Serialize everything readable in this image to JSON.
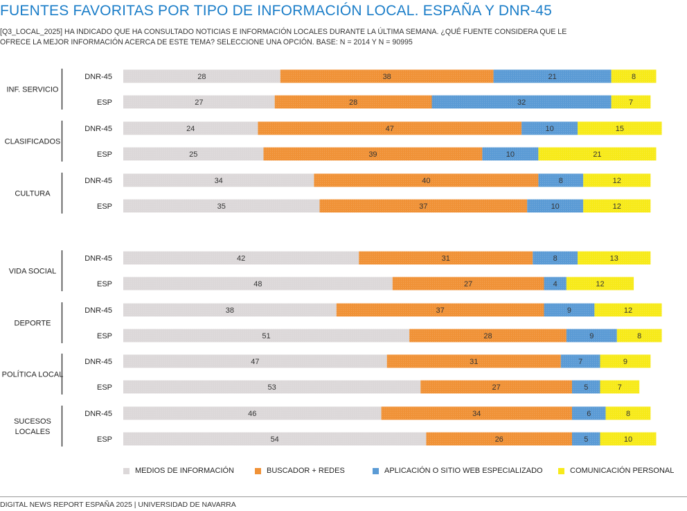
{
  "title": "FUENTES FAVORITAS POR TIPO DE INFORMACIÓN LOCAL. ESPAÑA Y DNR-45",
  "subtitle": "[Q3_LOCAL_2025] HA INDICADO QUE HA CONSULTADO NOTICIAS E INFORMACIÓN LOCALES DURANTE LA ÚLTIMA SEMANA. ¿QUÉ FUENTE CONSIDERA QUE LE OFRECE LA MEJOR INFORMACIÓN ACERCA DE ESTE TEMA? SELECCIONE UNA OPCIÓN. BASE: N = 2014 Y N = 90995",
  "footer": "DIGITAL NEWS REPORT ESPAÑA 2025 | UNIVERSIDAD DE NAVARRA",
  "chart_data": {
    "type": "bar",
    "orientation": "horizontal",
    "stacked": true,
    "xlim": [
      0,
      100
    ],
    "legend_position": "bottom",
    "series": [
      {
        "name": "MEDIOS DE INFORMACIÓN",
        "color": "#dcd8d9"
      },
      {
        "name": "BUSCADOR +  REDES",
        "color": "#f09237"
      },
      {
        "name": "APLICACIÓN O SITIO WEB ESPECIALIZADO",
        "color": "#5b9bd5"
      },
      {
        "name": "COMUNICACIÓN PERSONAL",
        "color": "#f7ea1a"
      }
    ],
    "groups": [
      {
        "label": "INF. SERVICIO",
        "rows": [
          {
            "label": "DNR-45",
            "values": [
              28,
              38,
              21,
              8
            ]
          },
          {
            "label": "ESP",
            "values": [
              27,
              28,
              32,
              7
            ]
          }
        ]
      },
      {
        "label": "CLASIFICADOS",
        "rows": [
          {
            "label": "DNR-45",
            "values": [
              24,
              47,
              10,
              15
            ]
          },
          {
            "label": "ESP",
            "values": [
              25,
              39,
              10,
              21
            ]
          }
        ]
      },
      {
        "label": "CULTURA",
        "rows": [
          {
            "label": "DNR-45",
            "values": [
              34,
              40,
              8,
              12
            ]
          },
          {
            "label": "ESP",
            "values": [
              35,
              37,
              10,
              12
            ]
          }
        ]
      },
      {
        "label": "VIDA SOCIAL",
        "rows": [
          {
            "label": "DNR-45",
            "values": [
              42,
              31,
              8,
              13
            ]
          },
          {
            "label": "ESP",
            "values": [
              48,
              27,
              4,
              12
            ]
          }
        ]
      },
      {
        "label": "DEPORTE",
        "rows": [
          {
            "label": "DNR-45",
            "values": [
              38,
              37,
              9,
              12
            ]
          },
          {
            "label": "ESP",
            "values": [
              51,
              28,
              9,
              8
            ]
          }
        ]
      },
      {
        "label": "POLÍTICA LOCAL",
        "rows": [
          {
            "label": "DNR-45",
            "values": [
              47,
              31,
              7,
              9
            ]
          },
          {
            "label": "ESP",
            "values": [
              53,
              27,
              5,
              7
            ]
          }
        ]
      },
      {
        "label": "SUCESOS LOCALES",
        "rows": [
          {
            "label": "DNR-45",
            "values": [
              46,
              34,
              6,
              8
            ]
          },
          {
            "label": "ESP",
            "values": [
              54,
              26,
              5,
              10
            ]
          }
        ]
      }
    ]
  }
}
